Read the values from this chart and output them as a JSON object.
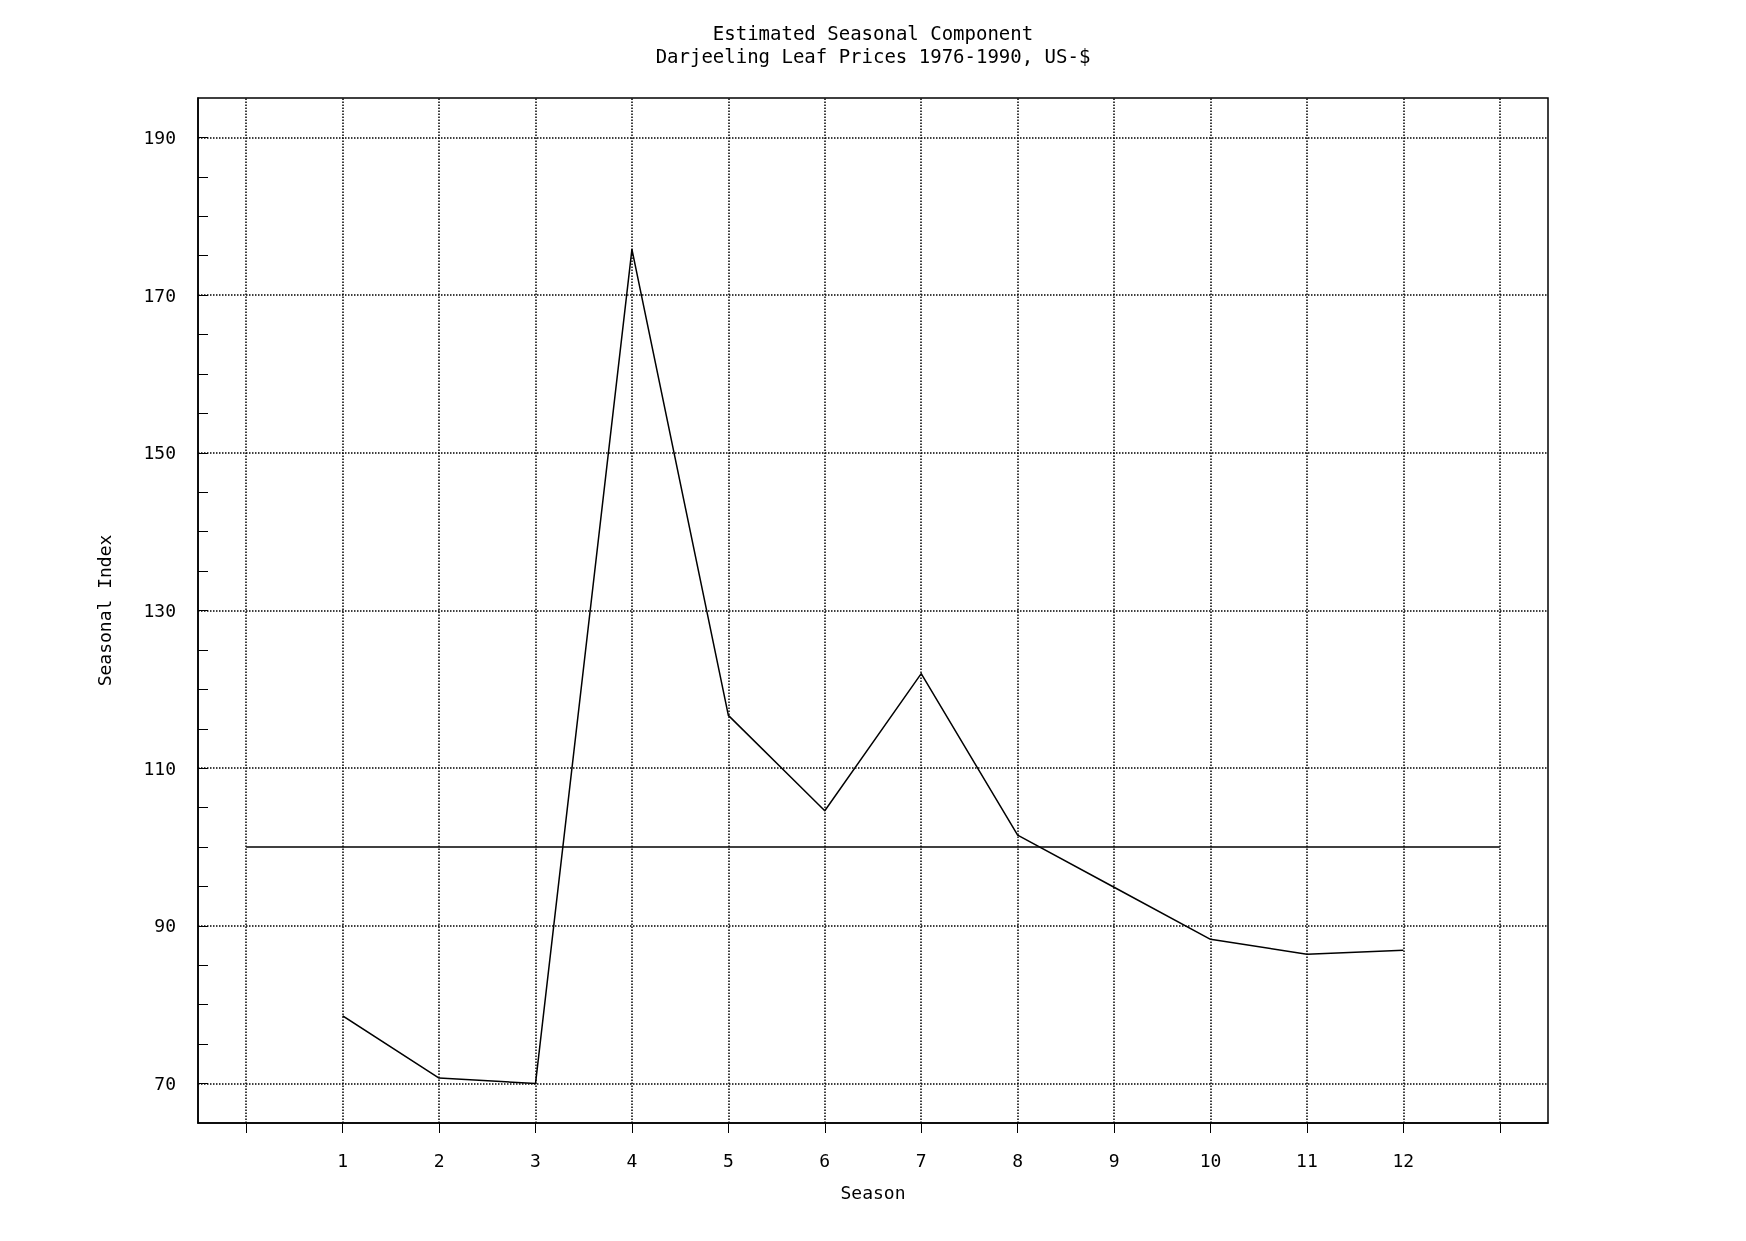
{
  "chart_data": {
    "type": "line",
    "title": "Estimated Seasonal Component",
    "subtitle": "Darjeeling Leaf Prices 1976-1990, US-$",
    "xlabel": "Season",
    "ylabel": "Seasonal Index",
    "x": [
      1,
      2,
      3,
      4,
      5,
      6,
      7,
      8,
      9,
      10,
      11,
      12
    ],
    "values": [
      78.6,
      70.7,
      70,
      175.8,
      116.7,
      104.6,
      122,
      101.5,
      94.9,
      88.3,
      86.4,
      86.9
    ],
    "color": "#000000",
    "marker": "none",
    "line_style": "solid",
    "grid": true,
    "xlim": [
      -0.5,
      13.5
    ],
    "xticks": [
      {
        "value": 0,
        "label": null
      },
      1,
      2,
      3,
      4,
      5,
      6,
      7,
      8,
      9,
      10,
      11,
      12,
      {
        "value": 13,
        "label": null
      }
    ],
    "ylim": [
      65,
      195
    ],
    "yticks": [
      70,
      {
        "value": 75,
        "label": null
      },
      {
        "value": 80,
        "label": null
      },
      {
        "value": 85,
        "label": null
      },
      90,
      {
        "value": 95,
        "label": null
      },
      {
        "value": 100,
        "label": null
      },
      {
        "value": 105,
        "label": null
      },
      110,
      {
        "value": 115,
        "label": null
      },
      {
        "value": 120,
        "label": null
      },
      {
        "value": 125,
        "label": null
      },
      130,
      {
        "value": 135,
        "label": null
      },
      {
        "value": 140,
        "label": null
      },
      {
        "value": 145,
        "label": null
      },
      150,
      {
        "value": 155,
        "label": null
      },
      {
        "value": 160,
        "label": null
      },
      {
        "value": 165,
        "label": null
      },
      170,
      {
        "value": 175,
        "label": null
      },
      {
        "value": 180,
        "label": null
      },
      {
        "value": 185,
        "label": null
      },
      190
    ],
    "ref_lines": [
      {
        "axis": "y",
        "value": 100,
        "color": "#000000",
        "line_style": "solid"
      }
    ]
  }
}
